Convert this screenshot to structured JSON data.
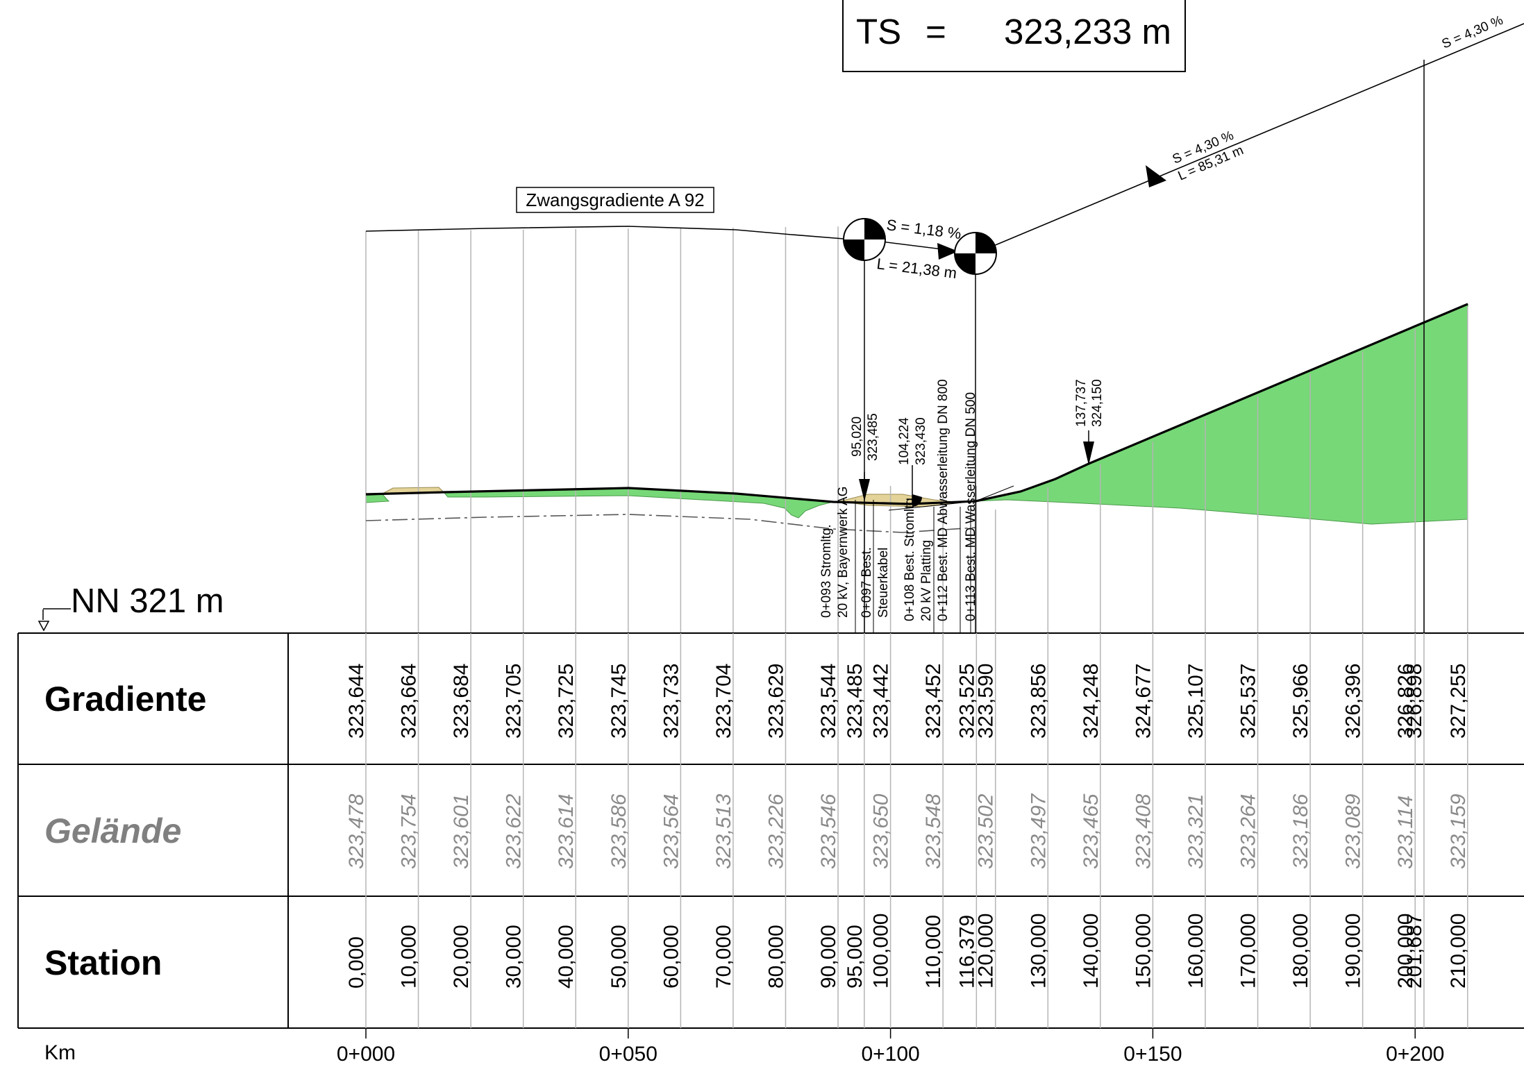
{
  "title_box": {
    "ts_label": "TS",
    "ts_eq": "=",
    "ts_value": "323,233 m"
  },
  "reference_level": "NN 321 m",
  "zwang_label": "Zwangsgradiente A 92",
  "slope_labels": {
    "s1": "S = 1,18 %",
    "l1": "L = 21,38 m",
    "s2": "S = 4,30 %",
    "l2": "L = 85,31 m",
    "s3": "S = 4,30 %"
  },
  "point_labels": [
    {
      "station": "95,020",
      "height": "323,485"
    },
    {
      "station": "104,224",
      "height": "323,430"
    },
    {
      "station": "137,737",
      "height": "324,150"
    }
  ],
  "crossings": [
    {
      "line1": "0+093 Stromltg.",
      "line2": "20 kV, Bayernwerk AG"
    },
    {
      "line1": "0+097 Best.",
      "line2": "Steuerkabel"
    },
    {
      "line1": "0+108 Best. Stromltg.",
      "line2": "20 kV Platting"
    },
    {
      "line1": "0+112 Best. MD Abwasserleitung DN 800",
      "line2": ""
    },
    {
      "line1": "0+113 Best. MD Wasserleitung DN 500",
      "line2": ""
    }
  ],
  "rows": {
    "gradiente_label": "Gradiente",
    "gelaende_label": "Gelände",
    "station_label": "Station"
  },
  "columns": [
    {
      "station": "0,000",
      "gradiente": "323,644",
      "gelaende": "323,478"
    },
    {
      "station": "10,000",
      "gradiente": "323,664",
      "gelaende": "323,754"
    },
    {
      "station": "20,000",
      "gradiente": "323,684",
      "gelaende": "323,601"
    },
    {
      "station": "30,000",
      "gradiente": "323,705",
      "gelaende": "323,622"
    },
    {
      "station": "40,000",
      "gradiente": "323,725",
      "gelaende": "323,614"
    },
    {
      "station": "50,000",
      "gradiente": "323,745",
      "gelaende": "323,586"
    },
    {
      "station": "60,000",
      "gradiente": "323,733",
      "gelaende": "323,564"
    },
    {
      "station": "70,000",
      "gradiente": "323,704",
      "gelaende": "323,513"
    },
    {
      "station": "80,000",
      "gradiente": "323,629",
      "gelaende": "323,226"
    },
    {
      "station": "90,000",
      "gradiente": "323,544",
      "gelaende": "323,546"
    },
    {
      "station": "95,000",
      "gradiente": "323,485",
      "gelaende": ""
    },
    {
      "station": "100,000",
      "gradiente": "323,442",
      "gelaende": "323,650"
    },
    {
      "station": "110,000",
      "gradiente": "323,452",
      "gelaende": "323,548"
    },
    {
      "station": "116,379",
      "gradiente": "323,525",
      "gelaende": ""
    },
    {
      "station": "120,000",
      "gradiente": "323,590",
      "gelaende": "323,502"
    },
    {
      "station": "130,000",
      "gradiente": "323,856",
      "gelaende": "323,497"
    },
    {
      "station": "140,000",
      "gradiente": "324,248",
      "gelaende": "323,465"
    },
    {
      "station": "150,000",
      "gradiente": "324,677",
      "gelaende": "323,408"
    },
    {
      "station": "160,000",
      "gradiente": "325,107",
      "gelaende": "323,321"
    },
    {
      "station": "170,000",
      "gradiente": "325,537",
      "gelaende": "323,264"
    },
    {
      "station": "180,000",
      "gradiente": "325,966",
      "gelaende": "323,186"
    },
    {
      "station": "190,000",
      "gradiente": "326,396",
      "gelaende": "323,089"
    },
    {
      "station": "200,000",
      "gradiente": "326,826",
      "gelaende": "323,114"
    },
    {
      "station": "201,687",
      "gradiente": "326,898",
      "gelaende": ""
    },
    {
      "station": "210,000",
      "gradiente": "327,255",
      "gelaende": "323,159"
    }
  ],
  "km_axis": {
    "label": "Km",
    "ticks": [
      "0+000",
      "0+050",
      "0+100",
      "0+150",
      "0+200"
    ]
  },
  "colors": {
    "fill_green": "#77d877",
    "fill_sand": "#e3d398",
    "line": "#000000",
    "grid": "#b5b5b5",
    "gelaende_text": "#8a8a8a"
  }
}
